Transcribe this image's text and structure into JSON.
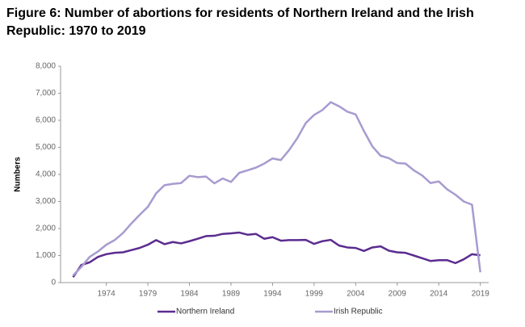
{
  "chart_data": {
    "type": "line",
    "title": "Figure 6: Number of abortions for residents of Northern Ireland and the Irish Republic: 1970 to 2019",
    "ylabel": "Numbers",
    "x": [
      1970,
      1971,
      1972,
      1973,
      1974,
      1975,
      1976,
      1977,
      1978,
      1979,
      1980,
      1981,
      1982,
      1983,
      1984,
      1985,
      1986,
      1987,
      1988,
      1989,
      1990,
      1991,
      1992,
      1993,
      1994,
      1995,
      1996,
      1997,
      1998,
      1999,
      2000,
      2001,
      2002,
      2003,
      2004,
      2005,
      2006,
      2007,
      2008,
      2009,
      2010,
      2011,
      2012,
      2013,
      2014,
      2015,
      2016,
      2017,
      2018,
      2019
    ],
    "series": [
      {
        "name": "Northern Ireland",
        "color": "#5b2c8f",
        "values": [
          200,
          650,
          750,
          950,
          1050,
          1100,
          1120,
          1200,
          1280,
          1400,
          1570,
          1420,
          1500,
          1450,
          1530,
          1620,
          1720,
          1730,
          1800,
          1820,
          1850,
          1770,
          1800,
          1620,
          1680,
          1550,
          1570,
          1570,
          1580,
          1430,
          1530,
          1580,
          1370,
          1300,
          1280,
          1170,
          1300,
          1340,
          1180,
          1120,
          1100,
          1000,
          900,
          800,
          830,
          830,
          720,
          860,
          1050,
          1010
        ]
      },
      {
        "name": "Irish Republic",
        "color": "#a89bd0",
        "values": [
          260,
          580,
          950,
          1150,
          1400,
          1570,
          1830,
          2180,
          2500,
          2800,
          3300,
          3600,
          3650,
          3680,
          3950,
          3900,
          3920,
          3670,
          3850,
          3720,
          4060,
          4150,
          4250,
          4400,
          4590,
          4530,
          4900,
          5350,
          5900,
          6200,
          6380,
          6670,
          6520,
          6320,
          6220,
          5600,
          5040,
          4690,
          4600,
          4420,
          4400,
          4150,
          3960,
          3680,
          3740,
          3450,
          3250,
          3000,
          2880,
          380
        ]
      }
    ],
    "xlim": [
      1968.5,
      2020
    ],
    "xticks": [
      1974,
      1979,
      1984,
      1989,
      1994,
      1999,
      2004,
      2009,
      2014,
      2019
    ],
    "ylim": [
      0,
      8000
    ],
    "yticks": [
      0,
      {
        "value": 1000,
        "label": "1,000"
      },
      {
        "value": 2000,
        "label": "2,000"
      },
      {
        "value": 3000,
        "label": "3,000"
      },
      {
        "value": 4000,
        "label": "4,000"
      },
      {
        "value": 5000,
        "label": "5,000"
      },
      {
        "value": 6000,
        "label": "6,000"
      },
      {
        "value": 7000,
        "label": "7,000"
      },
      {
        "value": 8000,
        "label": "8,000"
      }
    ],
    "legend": "bottom"
  }
}
